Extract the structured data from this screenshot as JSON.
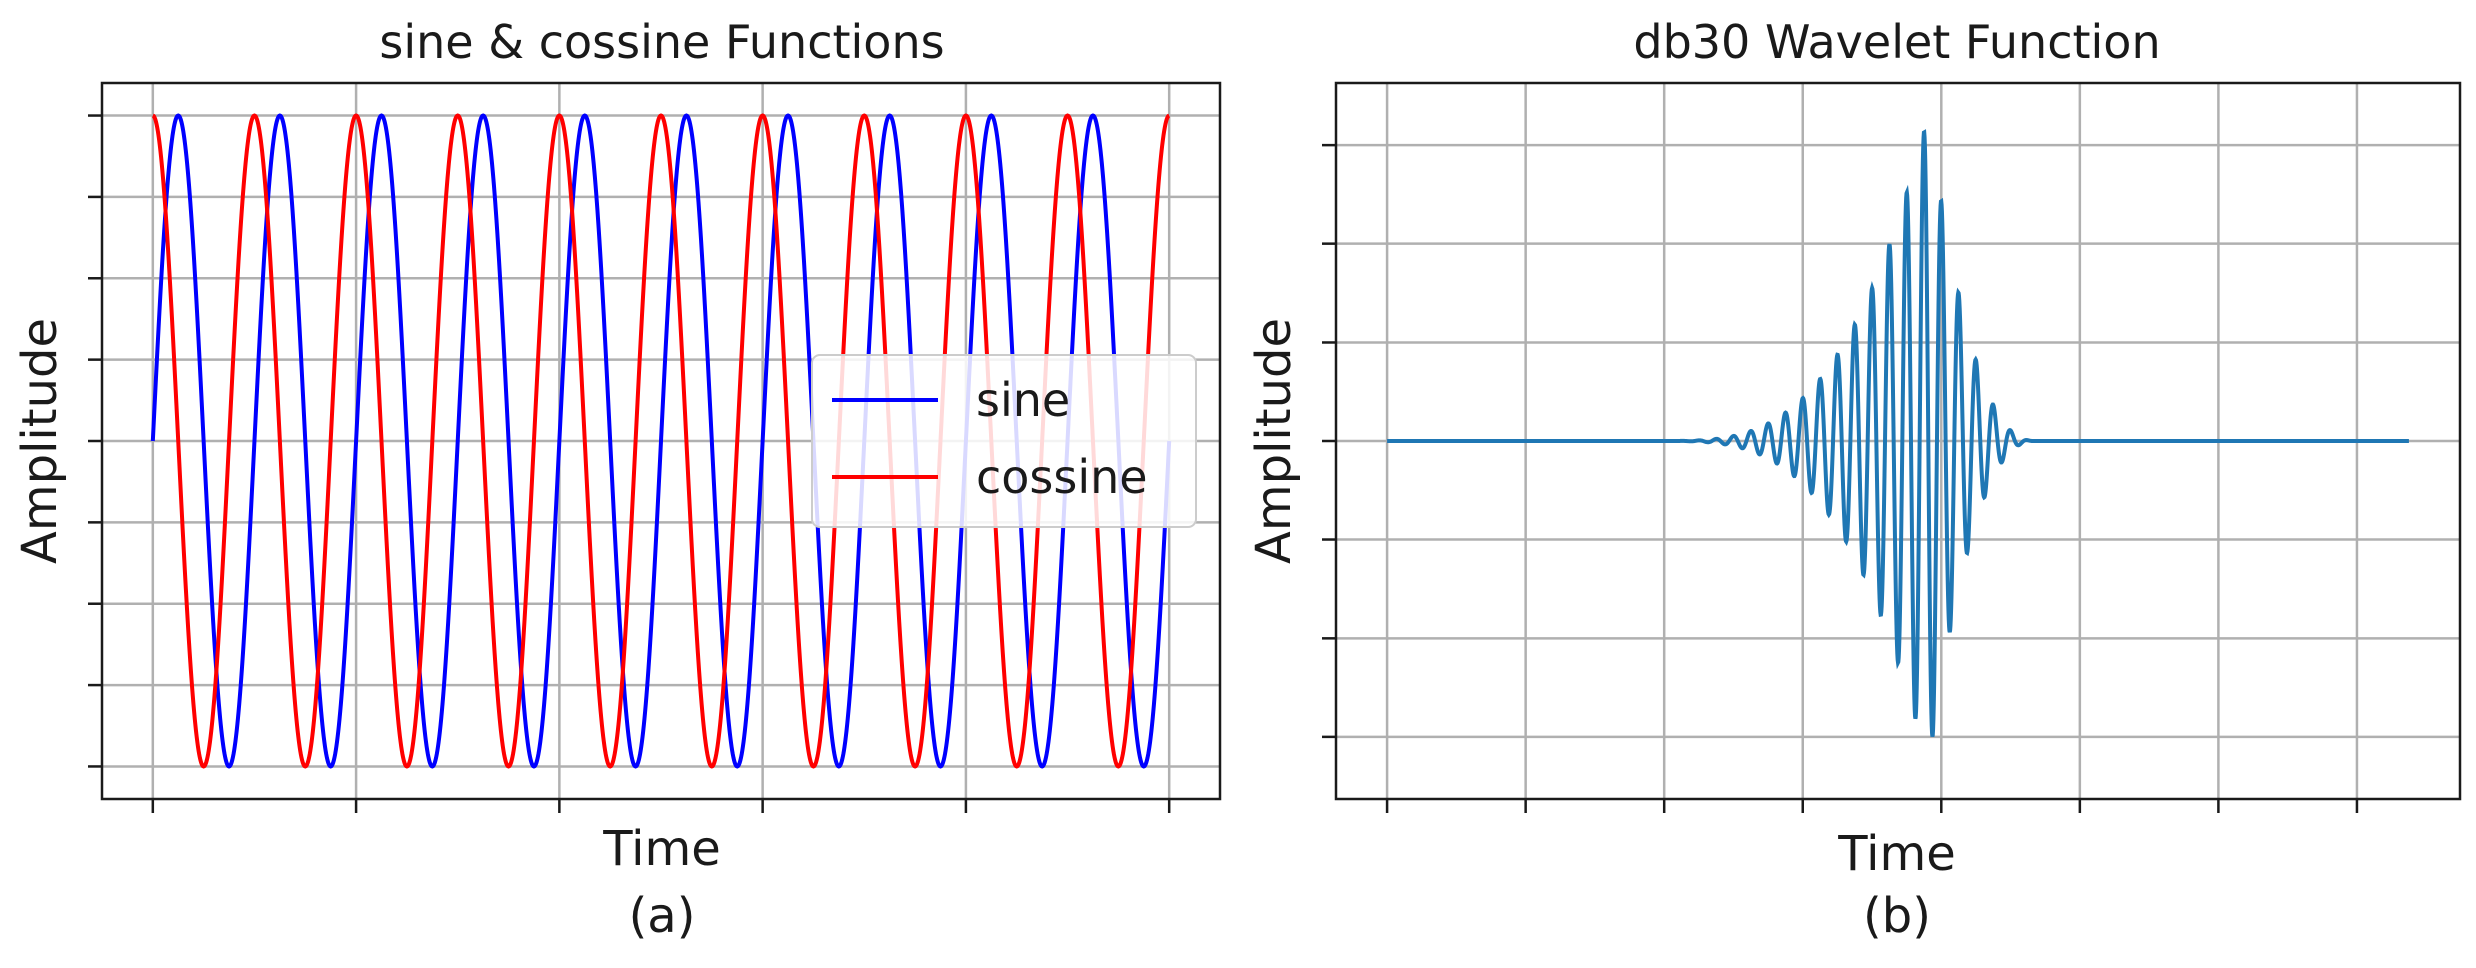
{
  "chart_data": [
    {
      "id": "a",
      "type": "line",
      "title": "sine & cossine Functions",
      "xlabel": "Time",
      "ylabel": "Amplitude",
      "caption": "(a)",
      "x_range": [
        0,
        10
      ],
      "ylim": [
        -1,
        1
      ],
      "x_ticks": [
        0,
        2,
        4,
        6,
        8,
        10
      ],
      "y_ticks": [
        -1,
        -0.75,
        -0.5,
        -0.25,
        0,
        0.25,
        0.5,
        0.75,
        1
      ],
      "tick_labels_shown": false,
      "grid": true,
      "legend": "center-right",
      "series": [
        {
          "name": "sine",
          "function": "sin(2*pi*x)",
          "color": "#0000ff"
        },
        {
          "name": "cossine",
          "function": "cos(2*pi*x)",
          "color": "#ff0000"
        }
      ]
    },
    {
      "id": "b",
      "type": "line",
      "title": "db30 Wavelet Function",
      "xlabel": "Time",
      "ylabel": "Amplitude",
      "caption": "(b)",
      "x_range": [
        0,
        59
      ],
      "ylim": [
        -1.1,
        1.1
      ],
      "x_ticks": [
        0,
        8,
        16,
        24,
        32,
        40,
        48,
        56
      ],
      "y_ticks": [
        -1,
        -0.667,
        -0.333,
        0,
        0.333,
        0.667,
        1
      ],
      "tick_labels_shown": false,
      "grid": true,
      "legend": "none",
      "color": "#1f77b4",
      "wavelet": {
        "support": [
          15.8,
          37.5
        ],
        "peak_x": 31.0,
        "peak_y": 1.1,
        "trough_x": 31.5,
        "trough_y": -1.08
      }
    }
  ]
}
